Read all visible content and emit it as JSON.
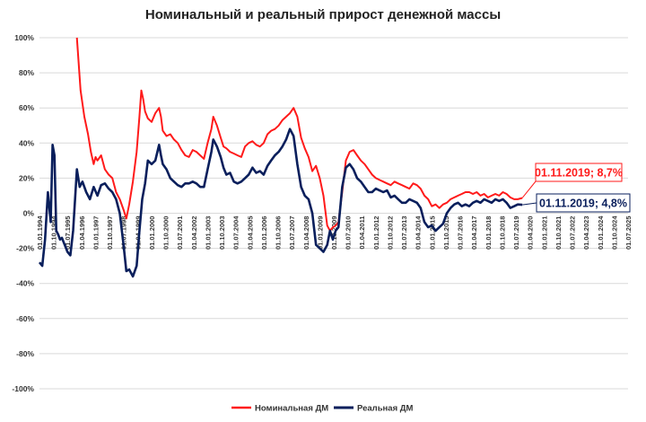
{
  "chart_data": {
    "type": "line",
    "title": "Номинальный и реальный прирост денежной массы",
    "xlabel": "",
    "ylabel": "",
    "ylim": [
      -100,
      100
    ],
    "y_ticks": [
      "100%",
      "80%",
      "60%",
      "40%",
      "20%",
      "0%",
      "-20%",
      "-40%",
      "-60%",
      "-80%",
      "-100%"
    ],
    "x_tick_labels": [
      "01.01.1994",
      "01.10.1994",
      "01.07.1995",
      "01.04.1996",
      "01.01.1997",
      "01.10.1997",
      "01.07.1998",
      "01.04.1999",
      "01.01.2000",
      "01.10.2000",
      "01.07.2001",
      "01.04.2002",
      "01.01.2003",
      "01.10.2003",
      "01.07.2004",
      "01.04.2005",
      "01.01.2006",
      "01.10.2006",
      "01.07.2007",
      "01.04.2008",
      "01.01.2009",
      "01.10.2009",
      "01.07.2010",
      "01.04.2011",
      "01.01.2012",
      "01.10.2012",
      "01.07.2013",
      "01.04.2014",
      "01.01.2015",
      "01.10.2015",
      "01.07.2016",
      "01.04.2017",
      "01.01.2018",
      "01.10.2018",
      "01.07.2019",
      "01.04.2020",
      "01.01.2021",
      "01.10.2021",
      "01.07.2022",
      "01.04.2023",
      "01.01.2024",
      "01.10.2024",
      "01.07.2025"
    ],
    "grid": true,
    "legend_position": "bottom",
    "series": [
      {
        "name": "Номинальная ДМ",
        "color": "#ff1a1a",
        "x": [
          1996.0,
          1996.2,
          1996.4,
          1996.6,
          1996.75,
          1996.9,
          1997.0,
          1997.1,
          1997.3,
          1997.5,
          1997.7,
          1997.9,
          1998.1,
          1998.3,
          1998.5,
          1998.65,
          1998.8,
          1999.0,
          1999.2,
          1999.35,
          1999.45,
          1999.55,
          1999.65,
          1999.8,
          2000.0,
          2000.2,
          2000.4,
          2000.5,
          2000.6,
          2000.8,
          2001.0,
          2001.2,
          2001.4,
          2001.6,
          2001.8,
          2002.0,
          2002.2,
          2002.4,
          2002.6,
          2002.8,
          2003.0,
          2003.2,
          2003.3,
          2003.5,
          2003.7,
          2003.85,
          2004.0,
          2004.2,
          2004.4,
          2004.6,
          2004.8,
          2005.0,
          2005.2,
          2005.4,
          2005.6,
          2005.8,
          2006.0,
          2006.2,
          2006.4,
          2006.6,
          2006.8,
          2007.0,
          2007.2,
          2007.4,
          2007.6,
          2007.8,
          2008.0,
          2008.2,
          2008.4,
          2008.6,
          2008.8,
          2009.0,
          2009.2,
          2009.4,
          2009.55,
          2009.7,
          2009.85,
          2010.0,
          2010.2,
          2010.4,
          2010.6,
          2010.8,
          2011.0,
          2011.2,
          2011.4,
          2011.6,
          2011.8,
          2012.0,
          2012.2,
          2012.4,
          2012.6,
          2012.8,
          2013.0,
          2013.2,
          2013.4,
          2013.6,
          2013.8,
          2014.0,
          2014.2,
          2014.4,
          2014.6,
          2014.8,
          2015.0,
          2015.2,
          2015.4,
          2015.6,
          2015.8,
          2016.0,
          2016.2,
          2016.4,
          2016.6,
          2016.8,
          2017.0,
          2017.2,
          2017.4,
          2017.6,
          2017.8,
          2018.0,
          2018.2,
          2018.4,
          2018.6,
          2018.8,
          2019.0,
          2019.2,
          2019.4,
          2019.6,
          2019.84
        ],
        "values": [
          100,
          70,
          55,
          45,
          35,
          28,
          32,
          30,
          33,
          25,
          22,
          20,
          12,
          8,
          2,
          -3,
          5,
          18,
          35,
          55,
          70,
          65,
          58,
          54,
          52,
          57,
          60,
          55,
          47,
          44,
          45,
          42,
          40,
          36,
          33,
          32,
          36,
          35,
          33,
          31,
          40,
          48,
          55,
          50,
          43,
          38,
          37,
          35,
          34,
          33,
          32,
          38,
          40,
          41,
          39,
          38,
          40,
          45,
          47,
          48,
          50,
          53,
          55,
          57,
          60,
          55,
          43,
          37,
          32,
          24,
          27,
          20,
          10,
          -7,
          -10,
          -8,
          -7,
          -5,
          12,
          30,
          35,
          36,
          33,
          30,
          28,
          25,
          22,
          20,
          19,
          18,
          17,
          16,
          18,
          17,
          16,
          15,
          14,
          17,
          16,
          14,
          10,
          8,
          4,
          5,
          3,
          5,
          6,
          8,
          9,
          10,
          11,
          12,
          12,
          11,
          12,
          10,
          11,
          9,
          10,
          11,
          10,
          12,
          11,
          9,
          8,
          8,
          8.7
        ]
      },
      {
        "name": "Реальная ДМ",
        "color": "#0a1f5c",
        "x": [
          1994.0,
          1994.15,
          1994.3,
          1994.45,
          1994.6,
          1994.7,
          1994.8,
          1994.9,
          1995.0,
          1995.1,
          1995.2,
          1995.35,
          1995.5,
          1995.65,
          1995.8,
          1996.0,
          1996.15,
          1996.3,
          1996.5,
          1996.7,
          1996.9,
          1997.1,
          1997.3,
          1997.5,
          1997.7,
          1997.9,
          1998.1,
          1998.3,
          1998.5,
          1998.65,
          1998.8,
          1999.0,
          1999.2,
          1999.35,
          1999.5,
          1999.65,
          1999.8,
          2000.0,
          2000.2,
          2000.4,
          2000.5,
          2000.6,
          2000.8,
          2001.0,
          2001.2,
          2001.4,
          2001.6,
          2001.8,
          2002.0,
          2002.2,
          2002.4,
          2002.6,
          2002.8,
          2003.0,
          2003.2,
          2003.3,
          2003.5,
          2003.7,
          2003.85,
          2004.0,
          2004.2,
          2004.4,
          2004.6,
          2004.8,
          2005.0,
          2005.2,
          2005.4,
          2005.6,
          2005.8,
          2006.0,
          2006.2,
          2006.4,
          2006.6,
          2006.8,
          2007.0,
          2007.2,
          2007.4,
          2007.6,
          2007.8,
          2008.0,
          2008.2,
          2008.4,
          2008.6,
          2008.8,
          2009.0,
          2009.2,
          2009.4,
          2009.55,
          2009.7,
          2009.85,
          2010.0,
          2010.2,
          2010.4,
          2010.6,
          2010.8,
          2011.0,
          2011.2,
          2011.4,
          2011.6,
          2011.8,
          2012.0,
          2012.2,
          2012.4,
          2012.6,
          2012.8,
          2013.0,
          2013.2,
          2013.4,
          2013.6,
          2013.8,
          2014.0,
          2014.2,
          2014.4,
          2014.6,
          2014.8,
          2015.0,
          2015.2,
          2015.4,
          2015.6,
          2015.8,
          2016.0,
          2016.2,
          2016.4,
          2016.6,
          2016.8,
          2017.0,
          2017.2,
          2017.4,
          2017.6,
          2017.8,
          2018.0,
          2018.2,
          2018.4,
          2018.6,
          2018.8,
          2019.0,
          2019.2,
          2019.4,
          2019.6,
          2019.84
        ],
        "values": [
          -28,
          -30,
          -15,
          12,
          -5,
          39,
          33,
          -10,
          -12,
          -15,
          -14,
          -18,
          -22,
          -24,
          -10,
          25,
          15,
          18,
          12,
          8,
          15,
          10,
          16,
          17,
          14,
          12,
          8,
          0,
          -18,
          -33,
          -32,
          -36,
          -30,
          -10,
          8,
          17,
          30,
          28,
          30,
          39,
          33,
          28,
          25,
          20,
          18,
          16,
          15,
          17,
          17,
          18,
          17,
          15,
          15,
          25,
          35,
          42,
          38,
          32,
          26,
          22,
          23,
          18,
          17,
          18,
          20,
          22,
          26,
          23,
          24,
          22,
          27,
          30,
          33,
          35,
          38,
          42,
          48,
          44,
          28,
          15,
          10,
          8,
          0,
          -18,
          -20,
          -22,
          -18,
          -10,
          -15,
          -10,
          -8,
          15,
          26,
          28,
          25,
          20,
          18,
          15,
          12,
          12,
          14,
          13,
          12,
          13,
          9,
          10,
          8,
          6,
          6,
          8,
          7,
          6,
          3,
          -5,
          -8,
          -7,
          -10,
          -8,
          -6,
          0,
          3,
          5,
          6,
          4,
          5,
          4,
          6,
          7,
          6,
          8,
          7,
          6,
          8,
          7,
          8,
          6,
          3,
          4,
          5,
          4.8
        ]
      }
    ],
    "annotations": [
      {
        "text": "01.11.2019; 8,7%",
        "series": "Номинальная ДМ",
        "x": 2019.84,
        "y": 8.7
      },
      {
        "text": "01.11.2019; 4,8%",
        "series": "Реальная ДМ",
        "x": 2019.84,
        "y": 4.8
      }
    ]
  }
}
